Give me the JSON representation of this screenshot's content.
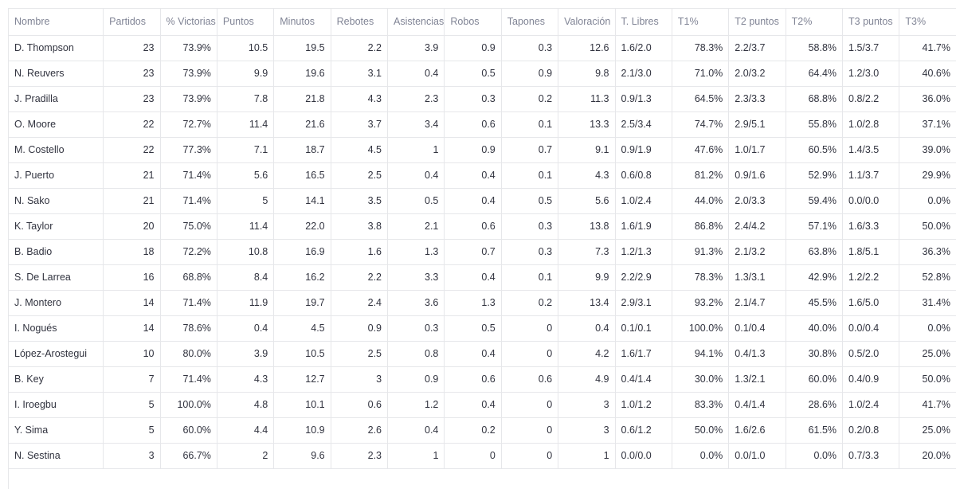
{
  "table": {
    "columns": [
      "Nombre",
      "Partidos",
      "% Victorias",
      "Puntos",
      "Minutos",
      "Rebotes",
      "Asistencias",
      "Robos",
      "Tapones",
      "Valoración",
      "T. Libres",
      "T1%",
      "T2 puntos",
      "T2%",
      "T3 puntos",
      "T3%"
    ],
    "rows": [
      [
        "D. Thompson",
        "23",
        "73.9%",
        "10.5",
        "19.5",
        "2.2",
        "3.9",
        "0.9",
        "0.3",
        "12.6",
        "1.6/2.0",
        "78.3%",
        "2.2/3.7",
        "58.8%",
        "1.5/3.7",
        "41.7%"
      ],
      [
        "N. Reuvers",
        "23",
        "73.9%",
        "9.9",
        "19.6",
        "3.1",
        "0.4",
        "0.5",
        "0.9",
        "9.8",
        "2.1/3.0",
        "71.0%",
        "2.0/3.2",
        "64.4%",
        "1.2/3.0",
        "40.6%"
      ],
      [
        "J. Pradilla",
        "23",
        "73.9%",
        "7.8",
        "21.8",
        "4.3",
        "2.3",
        "0.3",
        "0.2",
        "11.3",
        "0.9/1.3",
        "64.5%",
        "2.3/3.3",
        "68.8%",
        "0.8/2.2",
        "36.0%"
      ],
      [
        "O. Moore",
        "22",
        "72.7%",
        "11.4",
        "21.6",
        "3.7",
        "3.4",
        "0.6",
        "0.1",
        "13.3",
        "2.5/3.4",
        "74.7%",
        "2.9/5.1",
        "55.8%",
        "1.0/2.8",
        "37.1%"
      ],
      [
        "M. Costello",
        "22",
        "77.3%",
        "7.1",
        "18.7",
        "4.5",
        "1",
        "0.9",
        "0.7",
        "9.1",
        "0.9/1.9",
        "47.6%",
        "1.0/1.7",
        "60.5%",
        "1.4/3.5",
        "39.0%"
      ],
      [
        "J. Puerto",
        "21",
        "71.4%",
        "5.6",
        "16.5",
        "2.5",
        "0.4",
        "0.4",
        "0.1",
        "4.3",
        "0.6/0.8",
        "81.2%",
        "0.9/1.6",
        "52.9%",
        "1.1/3.7",
        "29.9%"
      ],
      [
        "N. Sako",
        "21",
        "71.4%",
        "5",
        "14.1",
        "3.5",
        "0.5",
        "0.4",
        "0.5",
        "5.6",
        "1.0/2.4",
        "44.0%",
        "2.0/3.3",
        "59.4%",
        "0.0/0.0",
        "0.0%"
      ],
      [
        "K. Taylor",
        "20",
        "75.0%",
        "11.4",
        "22.0",
        "3.8",
        "2.1",
        "0.6",
        "0.3",
        "13.8",
        "1.6/1.9",
        "86.8%",
        "2.4/4.2",
        "57.1%",
        "1.6/3.3",
        "50.0%"
      ],
      [
        "B. Badio",
        "18",
        "72.2%",
        "10.8",
        "16.9",
        "1.6",
        "1.3",
        "0.7",
        "0.3",
        "7.3",
        "1.2/1.3",
        "91.3%",
        "2.1/3.2",
        "63.8%",
        "1.8/5.1",
        "36.3%"
      ],
      [
        "S. De Larrea",
        "16",
        "68.8%",
        "8.4",
        "16.2",
        "2.2",
        "3.3",
        "0.4",
        "0.1",
        "9.9",
        "2.2/2.9",
        "78.3%",
        "1.3/3.1",
        "42.9%",
        "1.2/2.2",
        "52.8%"
      ],
      [
        "J. Montero",
        "14",
        "71.4%",
        "11.9",
        "19.7",
        "2.4",
        "3.6",
        "1.3",
        "0.2",
        "13.4",
        "2.9/3.1",
        "93.2%",
        "2.1/4.7",
        "45.5%",
        "1.6/5.0",
        "31.4%"
      ],
      [
        "I. Nogués",
        "14",
        "78.6%",
        "0.4",
        "4.5",
        "0.9",
        "0.3",
        "0.5",
        "0",
        "0.4",
        "0.1/0.1",
        "100.0%",
        "0.1/0.4",
        "40.0%",
        "0.0/0.4",
        "0.0%"
      ],
      [
        "López-Arostegui",
        "10",
        "80.0%",
        "3.9",
        "10.5",
        "2.5",
        "0.8",
        "0.4",
        "0",
        "4.2",
        "1.6/1.7",
        "94.1%",
        "0.4/1.3",
        "30.8%",
        "0.5/2.0",
        "25.0%"
      ],
      [
        "B. Key",
        "7",
        "71.4%",
        "4.3",
        "12.7",
        "3",
        "0.9",
        "0.6",
        "0.6",
        "4.9",
        "0.4/1.4",
        "30.0%",
        "1.3/2.1",
        "60.0%",
        "0.4/0.9",
        "50.0%"
      ],
      [
        "I. Iroegbu",
        "5",
        "100.0%",
        "4.8",
        "10.1",
        "0.6",
        "1.2",
        "0.4",
        "0",
        "3",
        "1.0/1.2",
        "83.3%",
        "0.4/1.4",
        "28.6%",
        "1.0/2.4",
        "41.7%"
      ],
      [
        "Y. Sima",
        "5",
        "60.0%",
        "4.4",
        "10.9",
        "2.6",
        "0.4",
        "0.2",
        "0",
        "3",
        "0.6/1.2",
        "50.0%",
        "1.6/2.6",
        "61.5%",
        "0.2/0.8",
        "25.0%"
      ],
      [
        "N. Sestina",
        "3",
        "66.7%",
        "2",
        "9.6",
        "2.3",
        "1",
        "0",
        "0",
        "1",
        "0.0/0.0",
        "0.0%",
        "0.0/1.0",
        "0.0%",
        "0.7/3.3",
        "20.0%"
      ]
    ]
  },
  "colors": {
    "grid": "#e6e7ea",
    "header_text": "#808495",
    "cell_text": "#31333f"
  }
}
